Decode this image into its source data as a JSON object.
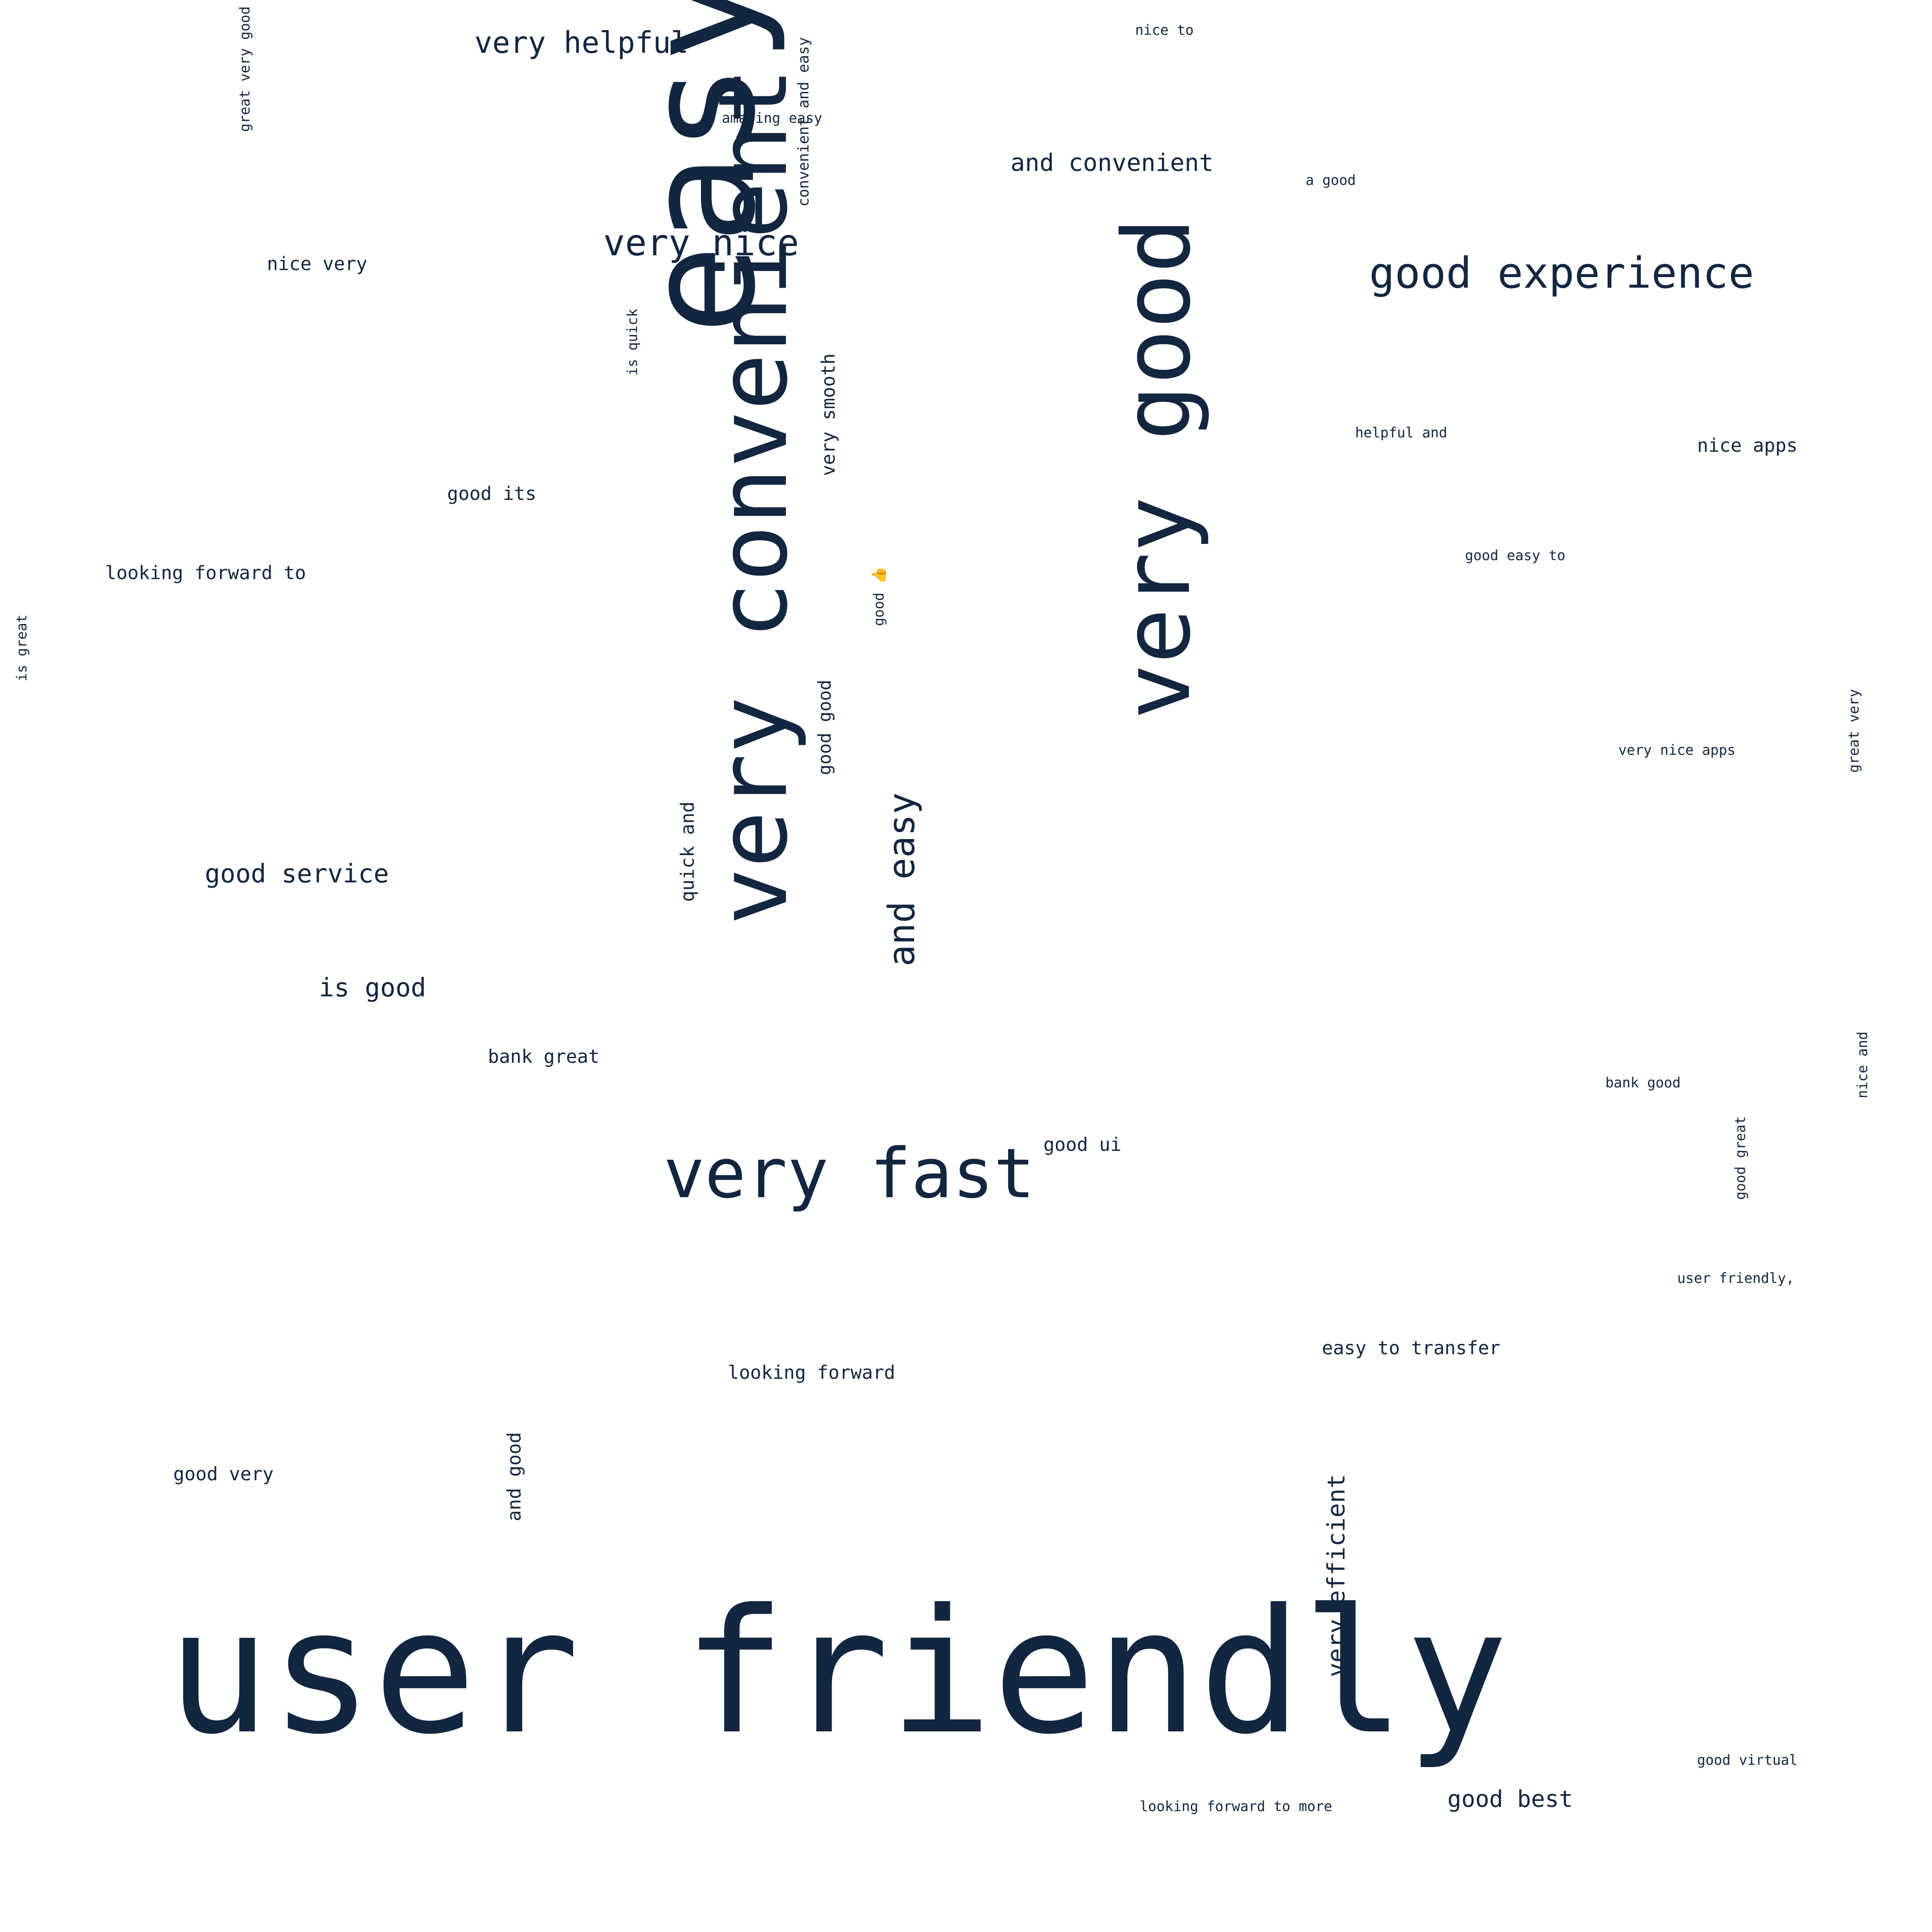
{
  "colors": {
    "background": "#ffffff",
    "text": "#122640"
  },
  "words": [
    {
      "text": "user friendly",
      "orientation": "horizontal"
    },
    {
      "text": "easy to",
      "orientation": "vertical"
    },
    {
      "text": "very convenient",
      "orientation": "vertical"
    },
    {
      "text": "very good",
      "orientation": "vertical"
    },
    {
      "text": "very fast",
      "orientation": "horizontal"
    },
    {
      "text": "and easy",
      "orientation": "vertical"
    },
    {
      "text": "good experience",
      "orientation": "horizontal"
    },
    {
      "text": "very nice",
      "orientation": "horizontal"
    },
    {
      "text": "very helpful",
      "orientation": "horizontal"
    },
    {
      "text": "and convenient",
      "orientation": "horizontal"
    },
    {
      "text": "very efficient",
      "orientation": "vertical"
    },
    {
      "text": "good service",
      "orientation": "horizontal"
    },
    {
      "text": "is good",
      "orientation": "horizontal"
    },
    {
      "text": "good best",
      "orientation": "horizontal"
    },
    {
      "text": "very smooth",
      "orientation": "vertical"
    },
    {
      "text": "quick and",
      "orientation": "vertical"
    },
    {
      "text": "and good",
      "orientation": "vertical"
    },
    {
      "text": "good good",
      "orientation": "vertical"
    },
    {
      "text": "looking forward to",
      "orientation": "horizontal"
    },
    {
      "text": "good its",
      "orientation": "horizontal"
    },
    {
      "text": "nice very",
      "orientation": "horizontal"
    },
    {
      "text": "nice apps",
      "orientation": "horizontal"
    },
    {
      "text": "easy to transfer",
      "orientation": "horizontal"
    },
    {
      "text": "good very",
      "orientation": "horizontal"
    },
    {
      "text": "bank great",
      "orientation": "horizontal"
    },
    {
      "text": "good ui",
      "orientation": "horizontal"
    },
    {
      "text": "looking forward",
      "orientation": "horizontal"
    },
    {
      "text": "convenient and easy",
      "orientation": "vertical"
    },
    {
      "text": "great very good",
      "orientation": "vertical"
    },
    {
      "text": "is quick",
      "orientation": "vertical"
    },
    {
      "text": "is great",
      "orientation": "vertical"
    },
    {
      "text": "good 👍",
      "orientation": "vertical"
    },
    {
      "text": "amazing easy",
      "orientation": "horizontal"
    },
    {
      "text": "nice to",
      "orientation": "horizontal"
    },
    {
      "text": "a good",
      "orientation": "horizontal"
    },
    {
      "text": "helpful and",
      "orientation": "horizontal"
    },
    {
      "text": "good easy to",
      "orientation": "horizontal"
    },
    {
      "text": "very nice apps",
      "orientation": "horizontal"
    },
    {
      "text": "great very",
      "orientation": "vertical"
    },
    {
      "text": "bank good",
      "orientation": "horizontal"
    },
    {
      "text": "nice and",
      "orientation": "vertical"
    },
    {
      "text": "good great",
      "orientation": "vertical"
    },
    {
      "text": "user friendly,",
      "orientation": "horizontal"
    },
    {
      "text": "good virtual",
      "orientation": "horizontal"
    },
    {
      "text": "looking forward to more",
      "orientation": "horizontal"
    }
  ]
}
